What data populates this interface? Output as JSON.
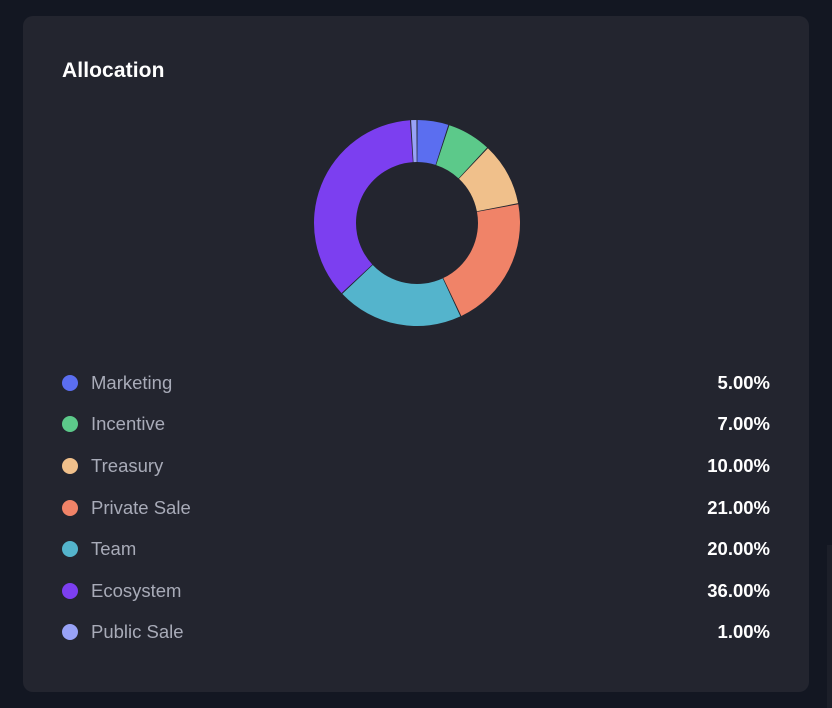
{
  "card": {
    "title": "Allocation"
  },
  "chart_data": {
    "type": "pie",
    "title": "Allocation",
    "categories": [
      "Marketing",
      "Incentive",
      "Treasury",
      "Private Sale",
      "Team",
      "Ecosystem",
      "Public Sale"
    ],
    "values": [
      5.0,
      7.0,
      10.0,
      21.0,
      20.0,
      36.0,
      1.0
    ],
    "value_labels": [
      "5.00%",
      "7.00%",
      "10.00%",
      "21.00%",
      "20.00%",
      "36.00%",
      "1.00%"
    ],
    "colors": [
      "#5b6ef0",
      "#5cc98a",
      "#f0c08b",
      "#f08368",
      "#54b4cc",
      "#7c3ff0",
      "#98a2f7"
    ],
    "donut": true,
    "legend": "bottom"
  }
}
